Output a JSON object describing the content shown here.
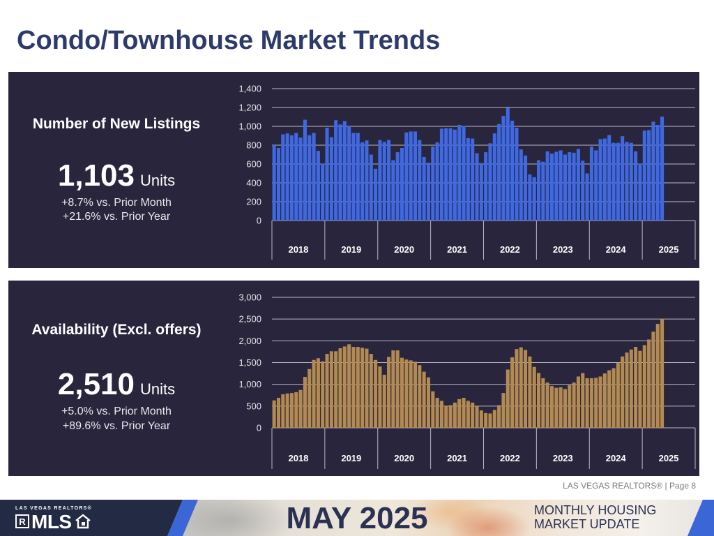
{
  "title": "Condo/Townhouse Market Trends",
  "colors": {
    "title": "#2d3a6c",
    "panel_background": "#29253c",
    "listings_bar": "#3f69e3",
    "availability_bar": "#b38b52",
    "banner_navy": "#222a44",
    "banner_blue": "#3b66d6"
  },
  "panels": [
    {
      "title": "Number of New Listings",
      "value": "1,103",
      "unit": "Units",
      "changes": [
        "+8.7% vs. Prior Month",
        "+21.6% vs. Prior Year"
      ]
    },
    {
      "title": "Availability (Excl. offers)",
      "value": "2,510",
      "unit": "Units",
      "changes": [
        "+5.0% vs. Prior Month",
        "+89.6% vs. Prior Year"
      ]
    }
  ],
  "chart_data": [
    {
      "type": "bar",
      "categories": [
        "2018",
        "2019",
        "2020",
        "2021",
        "2022",
        "2023",
        "2024",
        "2025"
      ],
      "values_by_category": [
        [
          800,
          770,
          915,
          925,
          905,
          930,
          880,
          1070,
          905,
          930,
          740,
          605
        ],
        [
          985,
          885,
          1065,
          1020,
          1055,
          1000,
          930,
          930,
          830,
          850,
          700,
          550
        ],
        [
          855,
          835,
          855,
          640,
          725,
          770,
          935,
          945,
          945,
          855,
          675,
          615
        ],
        [
          785,
          830,
          975,
          980,
          980,
          965,
          1015,
          1005,
          875,
          870,
          715,
          610
        ],
        [
          725,
          820,
          925,
          1025,
          1110,
          1195,
          1060,
          985,
          755,
          690,
          490,
          460
        ],
        [
          640,
          625,
          735,
          710,
          730,
          745,
          700,
          725,
          720,
          760,
          635,
          500
        ],
        [
          785,
          745,
          865,
          870,
          907,
          825,
          825,
          895,
          835,
          825,
          735,
          605
        ],
        [
          955,
          960,
          1050,
          1015,
          1103
        ]
      ],
      "yticks": [
        "0",
        "200",
        "400",
        "600",
        "800",
        "1,000",
        "1,200",
        "1,400"
      ],
      "ylim": [
        0,
        1400
      ],
      "grid": true,
      "color": "#3f69e3"
    },
    {
      "type": "bar",
      "categories": [
        "2018",
        "2019",
        "2020",
        "2021",
        "2022",
        "2023",
        "2024",
        "2025"
      ],
      "values_by_category": [
        [
          630,
          690,
          770,
          790,
          800,
          820,
          870,
          1170,
          1350,
          1560,
          1600,
          1530
        ],
        [
          1700,
          1760,
          1760,
          1830,
          1870,
          1920,
          1860,
          1860,
          1840,
          1820,
          1700,
          1560
        ],
        [
          1410,
          1220,
          1630,
          1780,
          1780,
          1610,
          1570,
          1550,
          1520,
          1440,
          1290,
          1160
        ],
        [
          840,
          690,
          620,
          500,
          520,
          580,
          660,
          690,
          620,
          580,
          500,
          400
        ],
        [
          340,
          330,
          410,
          520,
          800,
          1340,
          1620,
          1810,
          1850,
          1790,
          1640,
          1400
        ],
        [
          1260,
          1140,
          1040,
          960,
          920,
          930,
          890,
          980,
          1040,
          1180,
          1260,
          1140
        ],
        [
          1140,
          1150,
          1180,
          1250,
          1324,
          1370,
          1490,
          1640,
          1730,
          1800,
          1860,
          1770
        ],
        [
          1900,
          2030,
          2210,
          2390,
          2510
        ]
      ],
      "yticks": [
        "0",
        "500",
        "1,000",
        "1,500",
        "2,000",
        "2,500",
        "3,000"
      ],
      "ylim": [
        0,
        3000
      ],
      "grid": true,
      "color": "#b38b52"
    }
  ],
  "footer": "LAS VEGAS REALTORS® | Page 8",
  "banner": {
    "logo_top": "LAS VEGAS REALTORS®",
    "logo_mark": "R",
    "logo_text": "MLS",
    "logo_icon": "house-icon",
    "month": "MAY 2025",
    "line1": "MONTHLY HOUSING",
    "line2": "MARKET UPDATE"
  }
}
